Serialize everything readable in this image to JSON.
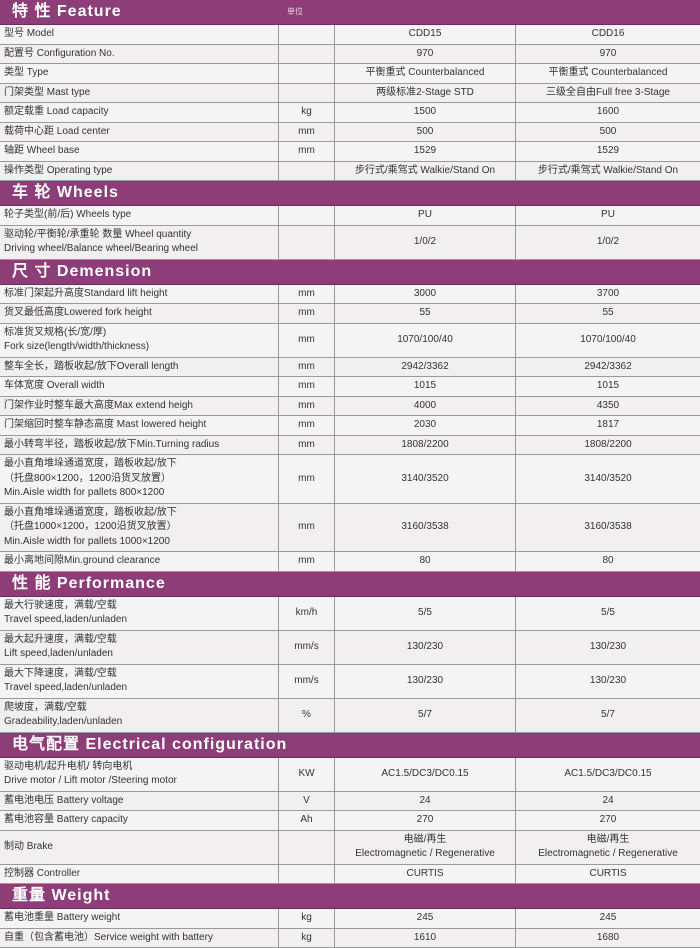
{
  "colors": {
    "header": "#8d3d78",
    "row_bg": "#f5f4f4",
    "border": "#9a9a9a"
  },
  "unit_header": "单位",
  "sections": [
    {
      "title": "特 性 Feature",
      "show_unit": true,
      "rows": [
        {
          "label": [
            "型号 Model"
          ],
          "unit": "",
          "v1": [
            "CDD15"
          ],
          "v2": [
            "CDD16"
          ]
        },
        {
          "label": [
            "配置号 Configuration No."
          ],
          "unit": "",
          "v1": [
            "970"
          ],
          "v2": [
            "970"
          ]
        },
        {
          "label": [
            "类型 Type"
          ],
          "unit": "",
          "v1": [
            "平衡重式 Counterbalanced"
          ],
          "v2": [
            "平衡重式 Counterbalanced"
          ]
        },
        {
          "label": [
            "门架类型 Mast type"
          ],
          "unit": "",
          "v1": [
            "两级标准2-Stage STD"
          ],
          "v2": [
            "三级全自由Full free 3-Stage"
          ]
        },
        {
          "label": [
            "额定载重 Load capacity"
          ],
          "unit": "kg",
          "v1": [
            "1500"
          ],
          "v2": [
            "1600"
          ]
        },
        {
          "label": [
            "载荷中心距 Load center"
          ],
          "unit": "mm",
          "v1": [
            "500"
          ],
          "v2": [
            "500"
          ]
        },
        {
          "label": [
            "轴距 Wheel base"
          ],
          "unit": "mm",
          "v1": [
            "1529"
          ],
          "v2": [
            "1529"
          ]
        },
        {
          "label": [
            "操作类型 Operating type"
          ],
          "unit": "",
          "v1": [
            "步行式/乘驾式 Walkie/Stand On"
          ],
          "v2": [
            "步行式/乘驾式 Walkie/Stand On"
          ]
        }
      ]
    },
    {
      "title": "车 轮 Wheels",
      "rows": [
        {
          "label": [
            "轮子类型(前/后) Wheels type"
          ],
          "unit": "",
          "v1": [
            "PU"
          ],
          "v2": [
            "PU"
          ]
        },
        {
          "label": [
            "驱动轮/平衡轮/承重轮 数量 Wheel quantity",
            "Driving wheel/Balance wheel/Bearing wheel"
          ],
          "unit": "",
          "v1": [
            "1/0/2"
          ],
          "v2": [
            "1/0/2"
          ]
        }
      ]
    },
    {
      "title": "尺 寸 Demension",
      "rows": [
        {
          "label": [
            "标准门架起升高度Standard lift height"
          ],
          "unit": "mm",
          "v1": [
            "3000"
          ],
          "v2": [
            "3700"
          ]
        },
        {
          "label": [
            "货叉最低高度Lowered fork height"
          ],
          "unit": "mm",
          "v1": [
            "55"
          ],
          "v2": [
            "55"
          ]
        },
        {
          "label": [
            "标准货叉规格(长/宽/厚)",
            "Fork size(length/width/thickness)"
          ],
          "unit": "mm",
          "v1": [
            "1070/100/40"
          ],
          "v2": [
            "1070/100/40"
          ]
        },
        {
          "label": [
            "整车全长，踏板收起/放下Overall length"
          ],
          "unit": "mm",
          "v1": [
            "2942/3362"
          ],
          "v2": [
            "2942/3362"
          ]
        },
        {
          "label": [
            "车体宽度 Overall width"
          ],
          "unit": "mm",
          "v1": [
            "1015"
          ],
          "v2": [
            "1015"
          ]
        },
        {
          "label": [
            "门架作业时整车最大高度Max extend heigh"
          ],
          "unit": "mm",
          "v1": [
            "4000"
          ],
          "v2": [
            "4350"
          ]
        },
        {
          "label": [
            "门架缩回时整车静态高度 Mast lowered height"
          ],
          "unit": "mm",
          "v1": [
            "2030"
          ],
          "v2": [
            "1817"
          ]
        },
        {
          "label": [
            "最小转弯半径，踏板收起/放下Min.Turning radius"
          ],
          "unit": "mm",
          "v1": [
            "1808/2200"
          ],
          "v2": [
            "1808/2200"
          ]
        },
        {
          "label": [
            "最小直角堆垛通道宽度，踏板收起/放下",
            "（托盘800×1200，1200沿货叉放置）",
            "Min.Aisle width for pallets 800×1200"
          ],
          "unit": "mm",
          "v1": [
            "3140/3520"
          ],
          "v2": [
            "3140/3520"
          ]
        },
        {
          "label": [
            "最小直角堆垛通道宽度，踏板收起/放下",
            "（托盘1000×1200，1200沿货叉放置）",
            "Min.Aisle width for pallets 1000×1200"
          ],
          "unit": "mm",
          "v1": [
            "3160/3538"
          ],
          "v2": [
            "3160/3538"
          ]
        },
        {
          "label": [
            "最小离地间隙Min.ground clearance"
          ],
          "unit": "mm",
          "v1": [
            "80"
          ],
          "v2": [
            "80"
          ]
        }
      ]
    },
    {
      "title": "性 能 Performance",
      "rows": [
        {
          "label": [
            "最大行驶速度，满载/空载",
            "Travel speed,laden/unladen"
          ],
          "unit": "km/h",
          "v1": [
            "5/5"
          ],
          "v2": [
            "5/5"
          ]
        },
        {
          "label": [
            "最大起升速度，满载/空载",
            "Lift speed,laden/unladen"
          ],
          "unit": "mm/s",
          "v1": [
            "130/230"
          ],
          "v2": [
            "130/230"
          ]
        },
        {
          "label": [
            "最大下降速度，满载/空载",
            "Travel speed,laden/unladen"
          ],
          "unit": "mm/s",
          "v1": [
            "130/230"
          ],
          "v2": [
            "130/230"
          ]
        },
        {
          "label": [
            "爬坡度，满载/空载",
            "Gradeability,laden/unladen"
          ],
          "unit": "%",
          "v1": [
            "5/7"
          ],
          "v2": [
            "5/7"
          ]
        }
      ]
    },
    {
      "title": "电气配置 Electrical configuration",
      "rows": [
        {
          "label": [
            "驱动电机/起升电机/ 转向电机",
            "Drive motor / Lift motor /Steering motor"
          ],
          "unit": "KW",
          "v1": [
            "AC1.5/DC3/DC0.15"
          ],
          "v2": [
            "AC1.5/DC3/DC0.15"
          ]
        },
        {
          "label": [
            "蓄电池电压 Battery voltage"
          ],
          "unit": "V",
          "v1": [
            "24"
          ],
          "v2": [
            "24"
          ]
        },
        {
          "label": [
            "蓄电池容量 Battery capacity"
          ],
          "unit": "Ah",
          "v1": [
            "270"
          ],
          "v2": [
            "270"
          ]
        },
        {
          "label": [
            "制动 Brake"
          ],
          "unit": "",
          "v1": [
            "电磁/再生",
            "Electromagnetic / Regenerative"
          ],
          "v2": [
            "电磁/再生",
            "Electromagnetic / Regenerative"
          ]
        },
        {
          "label": [
            "控制器 Controller"
          ],
          "unit": "",
          "v1": [
            "CURTIS"
          ],
          "v2": [
            "CURTIS"
          ]
        }
      ]
    },
    {
      "title": "重量 Weight",
      "rows": [
        {
          "label": [
            "蓄电池重量 Battery weight"
          ],
          "unit": "kg",
          "v1": [
            "245"
          ],
          "v2": [
            "245"
          ]
        },
        {
          "label": [
            "自重（包含蓄电池）Service weight with battery"
          ],
          "unit": "kg",
          "v1": [
            "1610"
          ],
          "v2": [
            "1680"
          ]
        }
      ]
    }
  ]
}
